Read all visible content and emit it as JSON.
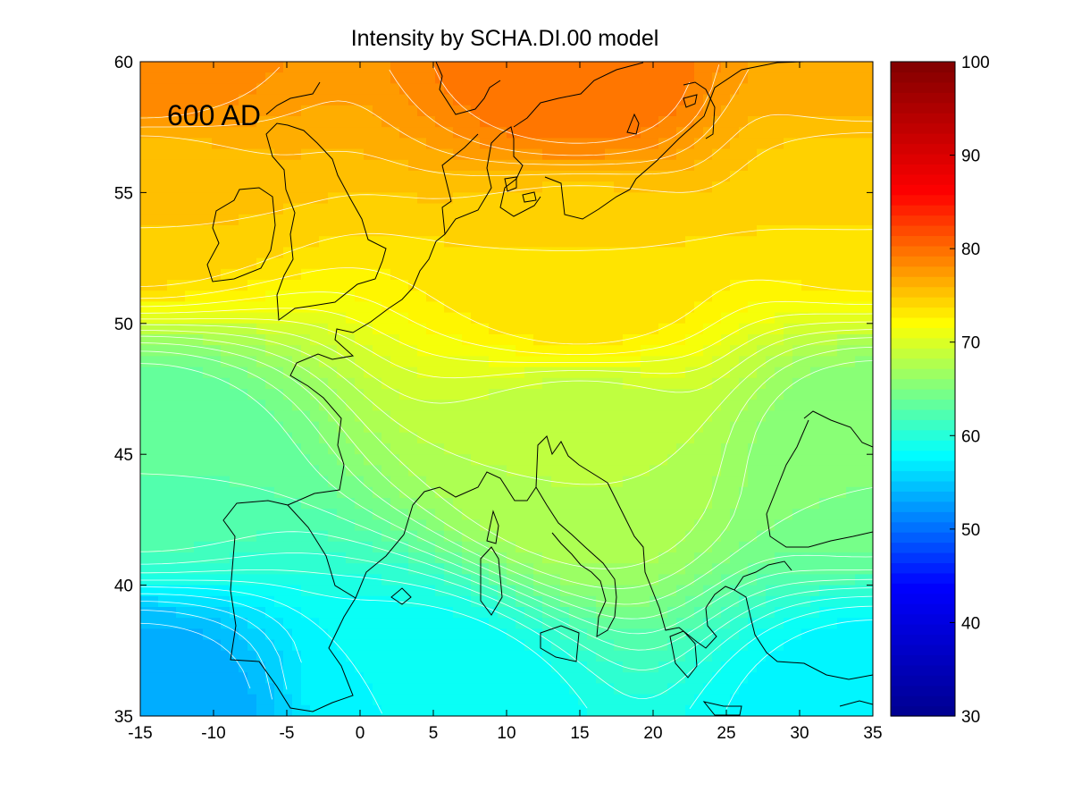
{
  "chart_data": {
    "type": "heatmap",
    "title": "Intensity by SCHA.DI.00 model",
    "annotation": "600 AD",
    "xlim": [
      -15,
      35
    ],
    "ylim": [
      35,
      60
    ],
    "x_ticks": [
      -15,
      -10,
      -5,
      0,
      5,
      10,
      15,
      20,
      25,
      30,
      35
    ],
    "y_ticks": [
      35,
      40,
      45,
      50,
      55,
      60
    ],
    "colorbar": {
      "range": [
        30,
        100
      ],
      "ticks": [
        30,
        40,
        50,
        60,
        70,
        80,
        90,
        100
      ],
      "colormap": "jet",
      "stops": [
        "#00008f",
        "#0000ff",
        "#00ffff",
        "#ffff00",
        "#ff0000",
        "#800000"
      ]
    },
    "contour_interval": 1,
    "field_samples": [
      {
        "lon": -15,
        "lat": 35,
        "value": 53
      },
      {
        "lon": 5,
        "lat": 35,
        "value": 58
      },
      {
        "lon": 35,
        "lat": 35,
        "value": 57
      },
      {
        "lon": -15,
        "lat": 45,
        "value": 63
      },
      {
        "lon": 15,
        "lat": 45,
        "value": 68
      },
      {
        "lon": 35,
        "lat": 45,
        "value": 65
      },
      {
        "lon": -15,
        "lat": 55,
        "value": 75
      },
      {
        "lon": 15,
        "lat": 52,
        "value": 74
      },
      {
        "lon": 35,
        "lat": 55,
        "value": 74
      },
      {
        "lon": -15,
        "lat": 60,
        "value": 79
      },
      {
        "lon": 15,
        "lat": 60,
        "value": 80
      },
      {
        "lon": 35,
        "lat": 60,
        "value": 77
      }
    ]
  }
}
